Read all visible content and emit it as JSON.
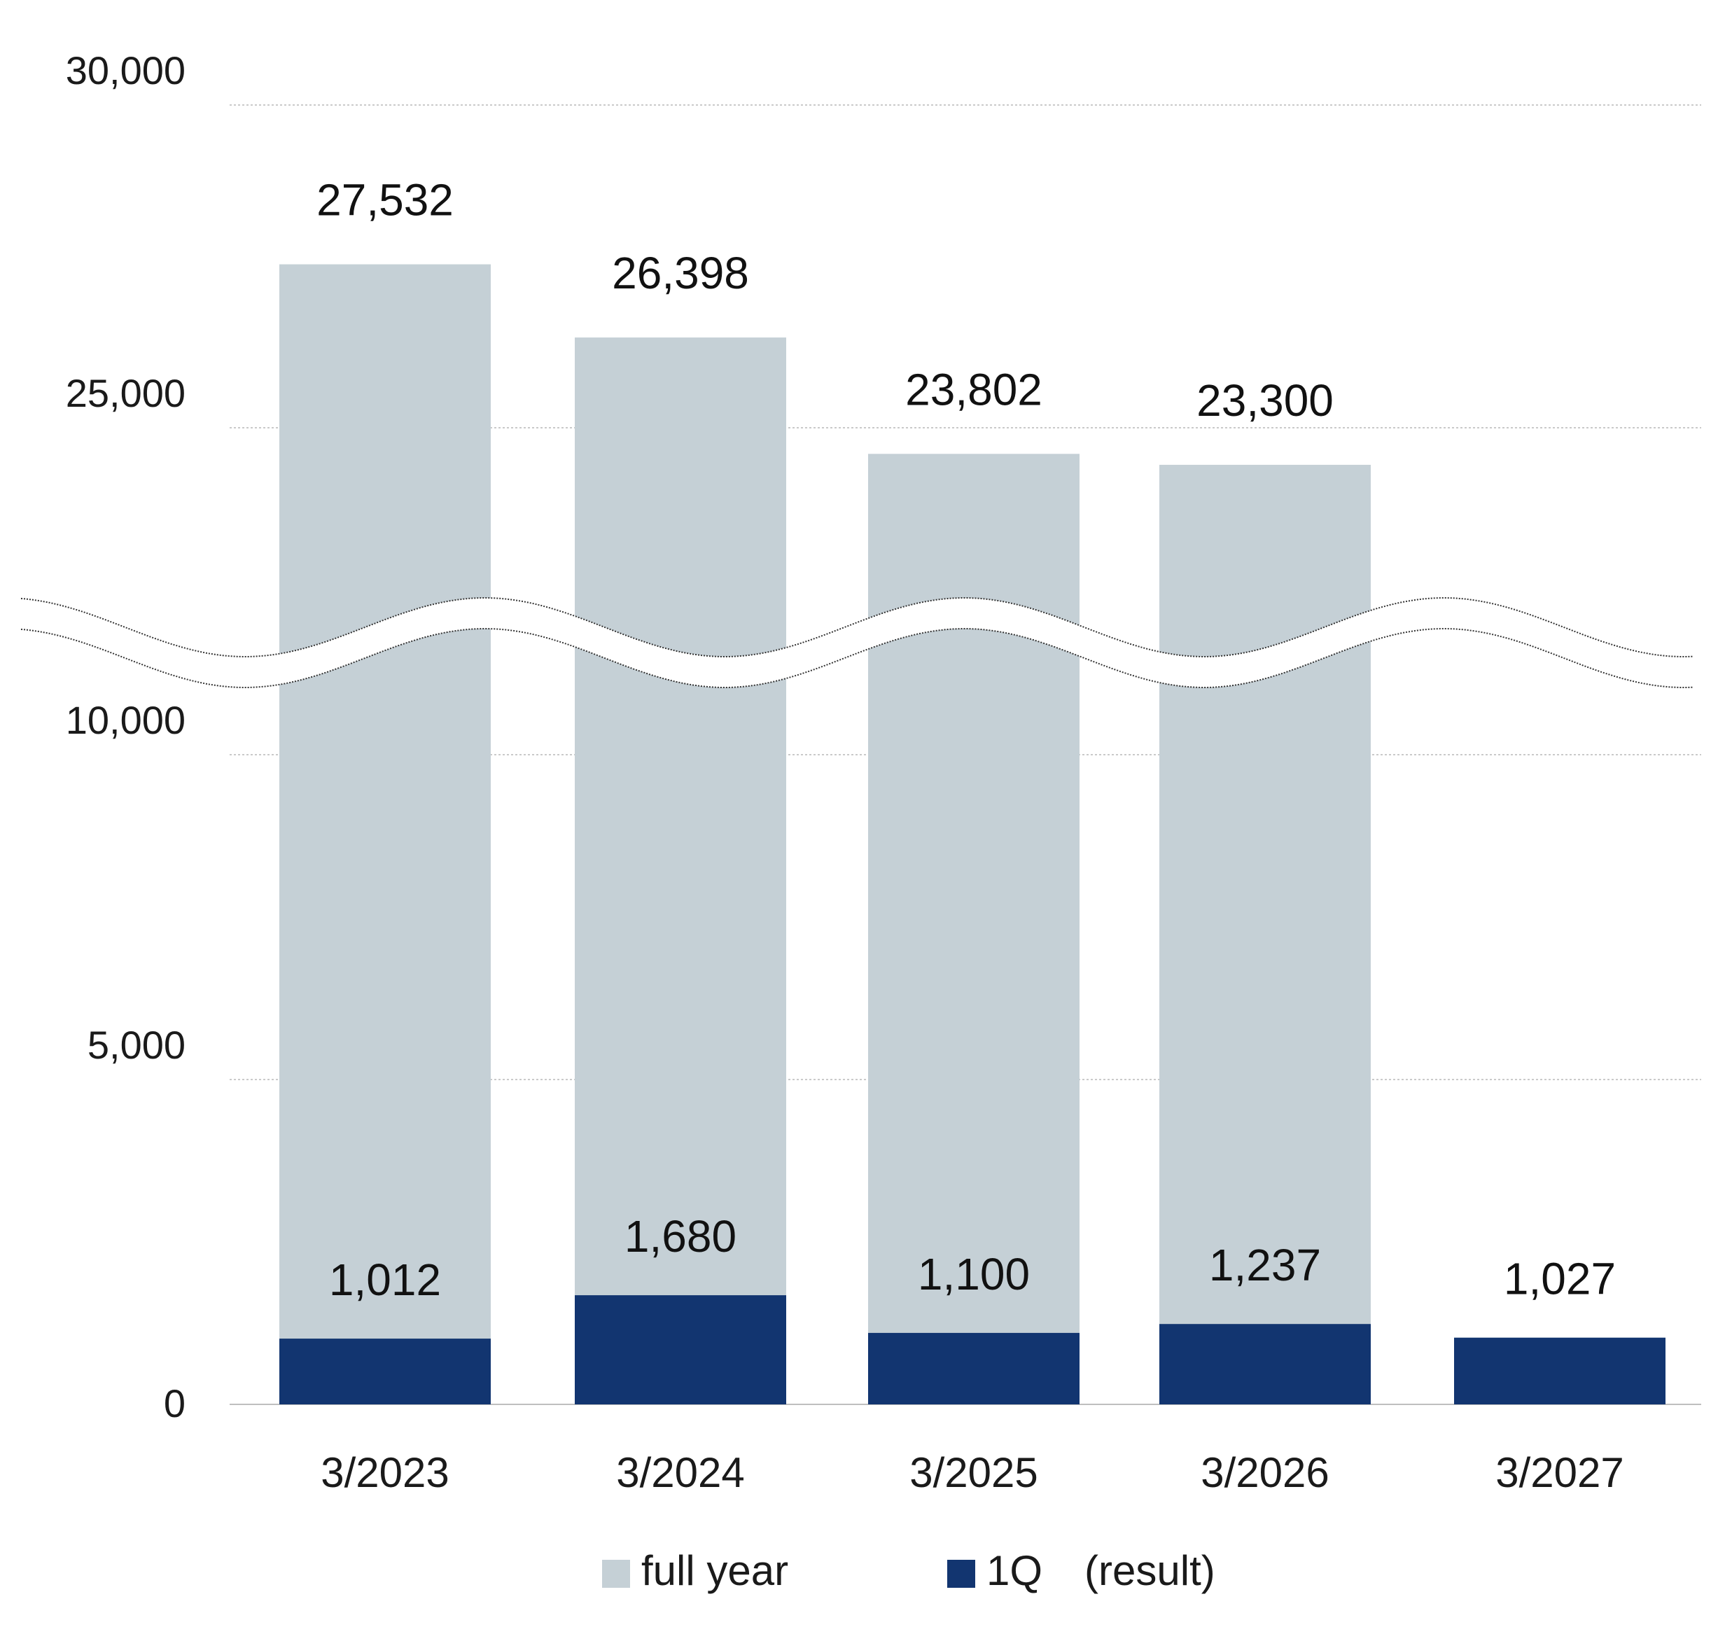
{
  "chart_data": {
    "type": "bar",
    "categories": [
      "3/2023",
      "3/2024",
      "3/2025",
      "3/2026",
      "3/2027"
    ],
    "series": [
      {
        "name": "full year",
        "values": [
          27532,
          26398,
          23802,
          23300,
          null
        ],
        "labels": [
          "27,532",
          "26,398",
          "23,802",
          "23,300",
          ""
        ],
        "color": "#c5d0d6"
      },
      {
        "name": "1Q　(result)",
        "values": [
          1012,
          1680,
          1100,
          1237,
          1027
        ],
        "labels": [
          "1,012",
          "1,680",
          "1,100",
          "1,237",
          "1,027"
        ],
        "color": "#123570"
      }
    ],
    "y_ticks": [
      {
        "value": 0,
        "label": "0"
      },
      {
        "value": 5000,
        "label": "5,000"
      },
      {
        "value": 10000,
        "label": "10,000"
      },
      {
        "value": 25000,
        "label": "25,000"
      },
      {
        "value": 30000,
        "label": "30,000"
      }
    ],
    "axis_break": [
      10000,
      25000
    ],
    "ylim": [
      0,
      30000
    ],
    "grid": true,
    "legend_position": "bottom",
    "title": "",
    "xlabel": "",
    "ylabel": ""
  }
}
